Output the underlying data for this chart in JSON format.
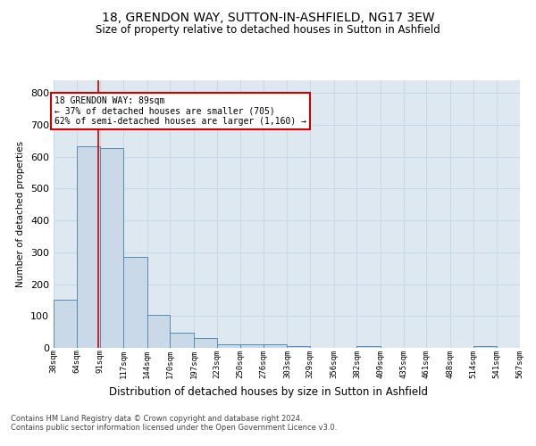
{
  "title": "18, GRENDON WAY, SUTTON-IN-ASHFIELD, NG17 3EW",
  "subtitle": "Size of property relative to detached houses in Sutton in Ashfield",
  "xlabel": "Distribution of detached houses by size in Sutton in Ashfield",
  "ylabel": "Number of detached properties",
  "footnote1": "Contains HM Land Registry data © Crown copyright and database right 2024.",
  "footnote2": "Contains public sector information licensed under the Open Government Licence v3.0.",
  "annotation_line1": "18 GRENDON WAY: 89sqm",
  "annotation_line2": "← 37% of detached houses are smaller (705)",
  "annotation_line3": "62% of semi-detached houses are larger (1,160) →",
  "property_size": 89,
  "bar_color": "#c9d9e8",
  "bar_edge_color": "#5a8ab0",
  "vline_color": "#cc0000",
  "annotation_box_color": "#cc0000",
  "grid_color": "#c8d8e8",
  "bin_edges": [
    38,
    64,
    91,
    117,
    144,
    170,
    197,
    223,
    250,
    276,
    303,
    329,
    356,
    382,
    409,
    435,
    461,
    488,
    514,
    541,
    567
  ],
  "bar_heights": [
    150,
    632,
    627,
    287,
    103,
    47,
    30,
    11,
    11,
    10,
    5,
    0,
    0,
    5,
    0,
    0,
    0,
    0,
    5,
    0
  ],
  "ylim": [
    0,
    840
  ],
  "yticks": [
    0,
    100,
    200,
    300,
    400,
    500,
    600,
    700,
    800
  ],
  "background_color": "#dde8f0"
}
